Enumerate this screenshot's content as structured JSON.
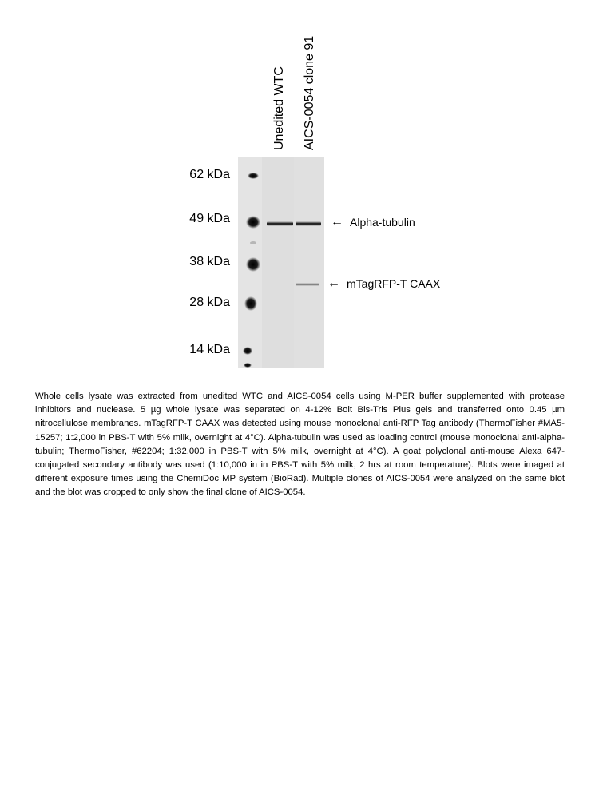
{
  "lanes": [
    {
      "label": "Unedited WTC"
    },
    {
      "label": "AICS-0054 clone 91"
    }
  ],
  "markers": [
    {
      "label": "62 kDa"
    },
    {
      "label": "49 kDa"
    },
    {
      "label": "38 kDa"
    },
    {
      "label": "28 kDa"
    },
    {
      "label": "14 kDa"
    }
  ],
  "bands": [
    {
      "label": "Alpha-tubulin",
      "arrow": "←"
    },
    {
      "label": "mTagRFP-T CAAX",
      "arrow": "←"
    }
  ],
  "caption": "Whole cells lysate was extracted from unedited WTC and AICS-0054 cells using M-PER buffer supplemented with protease inhibitors and nuclease. 5 µg whole lysate was separated on 4-12% Bolt Bis-Tris Plus gels and transferred onto 0.45 µm nitrocellulose membranes. mTagRFP-T CAAX was detected using mouse monoclonal anti-RFP Tag antibody (ThermoFisher #MA5-15257; 1:2,000 in PBS-T with 5% milk, overnight at 4°C). Alpha-tubulin was used as loading control (mouse monoclonal anti-alpha-tubulin; ThermoFisher, #62204; 1:32,000 in PBS-T with 5% milk, overnight at 4°C). A goat polyclonal anti-mouse Alexa 647-conjugated secondary antibody was used (1:10,000 in in PBS-T with 5% milk, 2 hrs at room temperature). Blots were imaged at different exposure times using the ChemiDoc MP system (BioRad). Multiple clones of AICS-0054 were analyzed on the same blot and the blot was cropped to only show the final clone of AICS-0054."
}
